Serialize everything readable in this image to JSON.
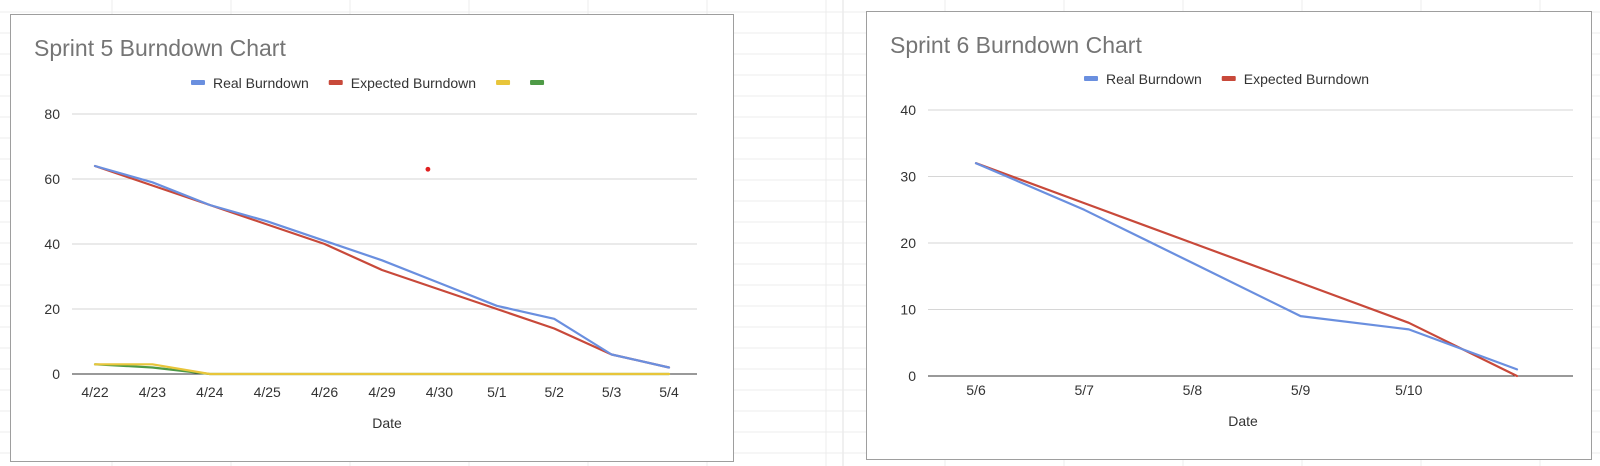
{
  "colors": {
    "real": "#6a8fdf",
    "expected": "#c8493a",
    "series3": "#e8c53a",
    "series4": "#4e9a46",
    "grid": "#d6d6d6",
    "axis": "#333333",
    "stray_point": "#e02020"
  },
  "chart_data": [
    {
      "type": "line",
      "title": "Sprint 5 Burndown Chart",
      "xlabel": "Date",
      "ylabel": "",
      "categories": [
        "4/22",
        "4/23",
        "4/24",
        "4/25",
        "4/26",
        "4/29",
        "4/30",
        "5/1",
        "5/2",
        "5/3",
        "5/4"
      ],
      "ylim": [
        0,
        80
      ],
      "yticks": [
        0,
        20,
        40,
        60,
        80
      ],
      "grid": true,
      "legend": "top",
      "series": [
        {
          "name": "Real Burndown",
          "color_key": "real",
          "values": [
            64,
            59,
            52,
            47,
            41,
            35,
            28,
            21,
            17,
            6,
            2
          ]
        },
        {
          "name": "Expected Burndown",
          "color_key": "expected",
          "values": [
            64,
            58,
            52,
            46,
            40,
            32,
            26,
            20,
            14,
            6,
            2
          ]
        },
        {
          "name": "",
          "color_key": "series3",
          "values": [
            3,
            3,
            0,
            0,
            0,
            0,
            0,
            0,
            0,
            0,
            0
          ]
        },
        {
          "name": "",
          "color_key": "series4",
          "values": [
            3,
            2,
            0,
            0,
            0,
            0,
            0,
            0,
            0,
            0,
            0
          ]
        }
      ],
      "annotations": [
        {
          "type": "point",
          "x_category": "4/30",
          "x_offset": -0.2,
          "y": 63,
          "color_key": "stray_point"
        }
      ]
    },
    {
      "type": "line",
      "title": "Sprint 6 Burndown Chart",
      "xlabel": "Date",
      "ylabel": "",
      "categories": [
        "5/6",
        "5/7",
        "5/8",
        "5/9",
        "5/10",
        ""
      ],
      "ylim": [
        0,
        40
      ],
      "yticks": [
        0,
        10,
        20,
        30,
        40
      ],
      "grid": true,
      "legend": "top",
      "series": [
        {
          "name": "Real Burndown",
          "color_key": "real",
          "values": [
            32,
            25,
            17,
            9,
            7,
            1
          ]
        },
        {
          "name": "Expected Burndown",
          "color_key": "expected",
          "values": [
            32,
            26,
            20,
            14,
            8,
            0
          ]
        }
      ]
    }
  ]
}
